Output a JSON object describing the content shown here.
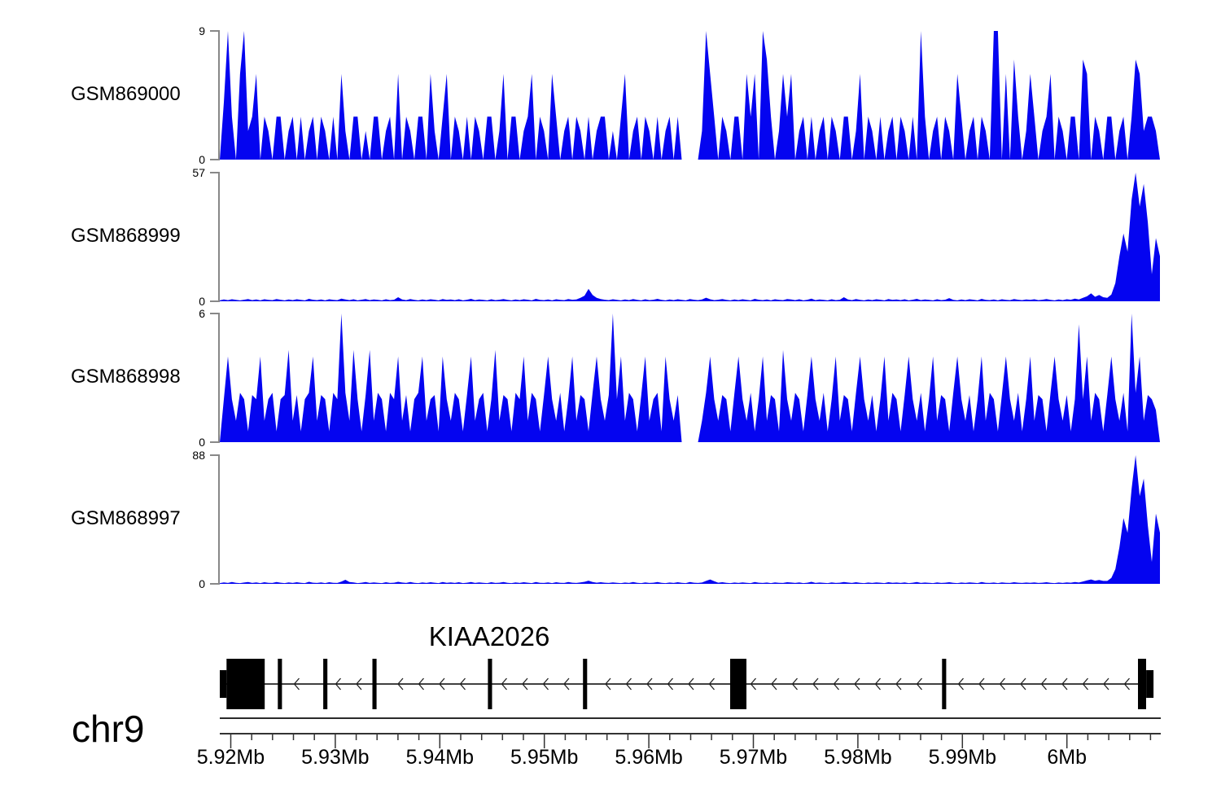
{
  "figure": {
    "chrom_label": "chr9"
  },
  "colors": {
    "signal": "#0404f0",
    "axis": "#888888",
    "ruler": "#333333",
    "gene": "#000000"
  },
  "axis": {
    "start_mb": 5.91895,
    "end_mb": 6.0089,
    "unit": "Mb"
  },
  "ruler": {
    "start_mb": 5.92,
    "end_mb": 6.008,
    "minor_step_mb": 0.002,
    "major_step_mb": 0.01,
    "major_ticks": [
      {
        "mb": 5.92,
        "label": "5.92Mb"
      },
      {
        "mb": 5.93,
        "label": "5.93Mb"
      },
      {
        "mb": 5.94,
        "label": "5.94Mb"
      },
      {
        "mb": 5.95,
        "label": "5.95Mb"
      },
      {
        "mb": 5.96,
        "label": "5.96Mb"
      },
      {
        "mb": 5.97,
        "label": "5.97Mb"
      },
      {
        "mb": 5.98,
        "label": "5.98Mb"
      },
      {
        "mb": 5.99,
        "label": "5.99Mb"
      },
      {
        "mb": 6.0,
        "label": "6Mb"
      }
    ]
  },
  "gene": {
    "name": "KIAA2026",
    "strand": "-",
    "line_start_mb": 5.91895,
    "line_end_mb": 6.00683,
    "exons": [
      {
        "start_mb": 5.91895,
        "end_mb": 5.9196,
        "type": "utr"
      },
      {
        "start_mb": 5.9196,
        "end_mb": 5.92325,
        "type": "cds"
      },
      {
        "start_mb": 5.9245,
        "end_mb": 5.9249,
        "type": "exon"
      },
      {
        "start_mb": 5.92885,
        "end_mb": 5.92925,
        "type": "exon"
      },
      {
        "start_mb": 5.93355,
        "end_mb": 5.93395,
        "type": "exon"
      },
      {
        "start_mb": 5.9446,
        "end_mb": 5.945,
        "type": "exon"
      },
      {
        "start_mb": 5.9537,
        "end_mb": 5.9541,
        "type": "exon"
      },
      {
        "start_mb": 5.96778,
        "end_mb": 5.96934,
        "type": "cds"
      },
      {
        "start_mb": 5.98805,
        "end_mb": 5.98845,
        "type": "exon"
      },
      {
        "start_mb": 6.0068,
        "end_mb": 6.00758,
        "type": "cds"
      },
      {
        "start_mb": 6.00758,
        "end_mb": 6.00828,
        "type": "utr"
      }
    ]
  },
  "chart_data": [
    {
      "type": "area",
      "name": "GSM869000",
      "ylim": [
        0,
        9
      ],
      "x_range_mb": [
        5.919,
        6.009
      ],
      "values": [
        0,
        4,
        9,
        3,
        0,
        6,
        9,
        2,
        3,
        6,
        0,
        3,
        2,
        0,
        3,
        3,
        0,
        2,
        3,
        0,
        3,
        0,
        2,
        3,
        0,
        3,
        2,
        0,
        3,
        0,
        6,
        2,
        0,
        3,
        3,
        0,
        2,
        0,
        3,
        3,
        0,
        2,
        3,
        0,
        6,
        0,
        3,
        2,
        0,
        3,
        3,
        0,
        6,
        2,
        0,
        3,
        6,
        0,
        3,
        2,
        0,
        3,
        0,
        3,
        2,
        0,
        3,
        3,
        0,
        2,
        6,
        0,
        3,
        3,
        0,
        2,
        3,
        6,
        0,
        3,
        2,
        0,
        6,
        3,
        0,
        2,
        3,
        0,
        3,
        2,
        0,
        3,
        0,
        2,
        3,
        3,
        0,
        2,
        0,
        3,
        6,
        0,
        2,
        3,
        0,
        3,
        2,
        0,
        3,
        0,
        2,
        3,
        0,
        3,
        0,
        0,
        0,
        0,
        0,
        2,
        9,
        6,
        3,
        0,
        3,
        2,
        0,
        3,
        3,
        0,
        6,
        3,
        6,
        0,
        9,
        7,
        3,
        0,
        2,
        6,
        3,
        6,
        0,
        2,
        3,
        0,
        3,
        0,
        2,
        3,
        0,
        3,
        2,
        0,
        3,
        3,
        0,
        2,
        6,
        0,
        3,
        2,
        0,
        3,
        0,
        2,
        3,
        0,
        3,
        2,
        0,
        3,
        0,
        9,
        3,
        0,
        2,
        3,
        0,
        3,
        2,
        0,
        6,
        3,
        0,
        2,
        3,
        0,
        3,
        2,
        0,
        9,
        9,
        0,
        6,
        0,
        7,
        3,
        0,
        2,
        6,
        3,
        0,
        2,
        3,
        6,
        0,
        3,
        2,
        0,
        3,
        3,
        0,
        7,
        6,
        0,
        3,
        2,
        0,
        3,
        3,
        0,
        2,
        3,
        0,
        3,
        7,
        6,
        2,
        3,
        3,
        2,
        0
      ]
    },
    {
      "type": "area",
      "name": "GSM868999",
      "ylim": [
        0,
        57
      ],
      "x_range_mb": [
        5.919,
        6.009
      ],
      "values": [
        0.4,
        0.8,
        0.5,
        0.9,
        0.6,
        0.4,
        0.7,
        1.0,
        0.5,
        0.8,
        0.4,
        0.9,
        0.6,
        0.5,
        1.0,
        0.7,
        0.4,
        0.8,
        0.5,
        0.9,
        0.6,
        0.4,
        1.1,
        0.7,
        0.5,
        0.8,
        0.4,
        0.9,
        0.6,
        0.5,
        1.2,
        0.8,
        0.5,
        0.9,
        0.4,
        0.7,
        1.0,
        0.5,
        0.8,
        0.6,
        0.4,
        0.9,
        0.5,
        0.7,
        1.8,
        0.8,
        0.5,
        1.0,
        0.6,
        0.4,
        0.8,
        0.5,
        0.9,
        0.7,
        0.4,
        1.0,
        0.6,
        0.8,
        0.5,
        0.9,
        0.4,
        0.7,
        1.1,
        0.5,
        0.8,
        0.6,
        0.4,
        0.9,
        0.5,
        0.7,
        1.0,
        0.6,
        0.4,
        0.8,
        0.5,
        0.9,
        0.7,
        0.4,
        1.1,
        0.6,
        0.5,
        0.8,
        0.4,
        0.9,
        0.6,
        0.5,
        1.0,
        0.7,
        0.8,
        1.5,
        2.5,
        5.5,
        2.8,
        1.5,
        1.0,
        0.7,
        0.5,
        0.9,
        0.6,
        0.4,
        0.8,
        0.5,
        1.0,
        0.6,
        0.4,
        0.9,
        0.5,
        0.7,
        1.1,
        0.6,
        0.4,
        0.8,
        0.5,
        0.9,
        0.6,
        0.4,
        1.0,
        0.7,
        0.5,
        0.8,
        1.6,
        0.9,
        0.5,
        0.7,
        1.0,
        0.6,
        0.4,
        0.8,
        0.5,
        0.9,
        0.6,
        0.4,
        1.1,
        0.7,
        0.5,
        0.8,
        0.4,
        0.9,
        0.6,
        0.5,
        1.0,
        0.8,
        0.5,
        0.9,
        0.4,
        0.7,
        1.2,
        0.5,
        0.8,
        0.6,
        0.4,
        0.9,
        0.5,
        0.7,
        1.8,
        0.8,
        0.5,
        1.0,
        0.6,
        0.4,
        0.8,
        0.5,
        0.9,
        0.7,
        0.4,
        1.0,
        0.6,
        0.8,
        0.5,
        0.9,
        0.4,
        0.7,
        1.1,
        0.5,
        0.8,
        0.6,
        0.4,
        0.9,
        0.5,
        0.7,
        1.4,
        0.6,
        0.4,
        0.8,
        0.5,
        0.9,
        0.7,
        0.4,
        1.1,
        0.6,
        0.5,
        0.8,
        0.4,
        0.9,
        0.6,
        0.5,
        1.0,
        0.7,
        0.5,
        0.8,
        0.6,
        0.9,
        0.5,
        0.7,
        1.0,
        0.6,
        0.4,
        0.8,
        0.5,
        0.9,
        0.7,
        1.2,
        0.8,
        1.5,
        2.2,
        3.5,
        2.0,
        2.8,
        1.8,
        1.5,
        3,
        8,
        20,
        30,
        22,
        45,
        57,
        42,
        52,
        35,
        12,
        28,
        20
      ]
    },
    {
      "type": "area",
      "name": "GSM868998",
      "ylim": [
        0,
        6
      ],
      "x_range_mb": [
        5.919,
        6.009
      ],
      "values": [
        0,
        2,
        4,
        2,
        1,
        2.3,
        2,
        0.5,
        2.2,
        2,
        4,
        1,
        2,
        2.3,
        0.5,
        2,
        2.2,
        4.3,
        1,
        2.2,
        0.5,
        2,
        2.3,
        4,
        1,
        2.2,
        2,
        0.5,
        2.3,
        2,
        6,
        2.3,
        1,
        4.3,
        2,
        0.5,
        2.2,
        4.3,
        1,
        2.3,
        2,
        0.5,
        2.3,
        2,
        4,
        1,
        2.2,
        0.5,
        2,
        2.3,
        4,
        1,
        2,
        2.2,
        0.5,
        4,
        2,
        1,
        2.3,
        2,
        0.5,
        2.2,
        4,
        1,
        2,
        2.3,
        0.5,
        2,
        4.3,
        1,
        2.2,
        2,
        0.5,
        2.3,
        2,
        4,
        1,
        2.3,
        2,
        0.5,
        2.2,
        4,
        2,
        1,
        2.3,
        0.5,
        2,
        4,
        1,
        2.2,
        2,
        0.5,
        2.3,
        4,
        2,
        1,
        2.2,
        6,
        2,
        4,
        1,
        2.3,
        2,
        0.5,
        2.2,
        4,
        1,
        2,
        2.3,
        0.5,
        4,
        2,
        1,
        2.2,
        0,
        0,
        0,
        0,
        0,
        1,
        2.3,
        4,
        2,
        1,
        2.2,
        2,
        0.5,
        2.3,
        4,
        2,
        1,
        2.3,
        0.5,
        2,
        4,
        1,
        2.2,
        2,
        0.5,
        4.3,
        2,
        1,
        2.3,
        2,
        0.5,
        2.2,
        4,
        2,
        1,
        2.3,
        0.5,
        2,
        4,
        1,
        2.2,
        2,
        0.5,
        2.3,
        4,
        2,
        1,
        2.2,
        0.5,
        2,
        4,
        1,
        2.3,
        2,
        0.5,
        2.2,
        4,
        2,
        1,
        2.3,
        0.5,
        2,
        4,
        1,
        2.2,
        2,
        0.5,
        2.3,
        4,
        2,
        1,
        2.2,
        0.5,
        2,
        4,
        1,
        2.3,
        2,
        0.5,
        2.2,
        4,
        2,
        1,
        2.3,
        0.5,
        2,
        4,
        1,
        2.2,
        2,
        0.5,
        2.3,
        4,
        2,
        1,
        2.2,
        0.5,
        2,
        5.5,
        2,
        4,
        1,
        2.3,
        2,
        0.5,
        2.2,
        4,
        2,
        1,
        2.3,
        0.5,
        6,
        2.3,
        4,
        1,
        2.2,
        2,
        1.5,
        0
      ]
    },
    {
      "type": "area",
      "name": "GSM868997",
      "ylim": [
        0,
        88
      ],
      "x_range_mb": [
        5.919,
        6.009
      ],
      "values": [
        0.5,
        1.0,
        0.6,
        1.2,
        0.7,
        0.5,
        0.9,
        1.3,
        0.6,
        1.0,
        0.5,
        1.1,
        0.7,
        0.6,
        1.3,
        0.8,
        0.5,
        1.0,
        0.6,
        1.1,
        0.7,
        0.5,
        1.4,
        0.8,
        0.6,
        1.0,
        0.5,
        1.1,
        0.7,
        0.6,
        1.5,
        2.8,
        1.2,
        1.0,
        0.5,
        0.8,
        1.2,
        0.6,
        1.0,
        0.7,
        0.5,
        1.1,
        0.6,
        0.8,
        1.4,
        0.9,
        0.6,
        1.2,
        0.7,
        0.5,
        1.0,
        0.6,
        1.1,
        0.8,
        0.5,
        1.2,
        0.7,
        1.0,
        0.6,
        1.1,
        0.5,
        0.8,
        1.3,
        0.6,
        1.0,
        0.7,
        0.5,
        1.1,
        0.6,
        0.8,
        1.2,
        0.7,
        0.5,
        1.0,
        0.6,
        1.1,
        0.8,
        0.5,
        1.3,
        0.7,
        0.6,
        1.0,
        0.5,
        1.1,
        0.7,
        0.6,
        1.2,
        0.8,
        0.6,
        1.0,
        1.4,
        2.2,
        1.2,
        0.8,
        1.1,
        0.8,
        0.6,
        1.0,
        0.7,
        0.5,
        0.9,
        0.6,
        1.2,
        0.7,
        0.5,
        1.0,
        0.6,
        0.8,
        1.3,
        0.7,
        0.5,
        0.9,
        0.6,
        1.1,
        0.7,
        0.5,
        1.2,
        0.8,
        0.6,
        0.9,
        2.0,
        3.0,
        1.8,
        0.8,
        1.1,
        0.7,
        0.5,
        0.9,
        0.6,
        1.0,
        0.7,
        0.5,
        1.3,
        0.8,
        0.6,
        0.9,
        0.5,
        1.0,
        0.7,
        0.6,
        1.1,
        0.9,
        0.6,
        1.0,
        0.5,
        0.8,
        1.4,
        0.6,
        0.9,
        0.7,
        0.5,
        1.0,
        0.6,
        0.8,
        1.2,
        0.9,
        0.6,
        1.1,
        0.7,
        0.5,
        0.9,
        0.6,
        1.0,
        0.8,
        0.5,
        1.1,
        0.7,
        0.9,
        0.6,
        1.0,
        0.5,
        0.8,
        1.2,
        0.6,
        0.9,
        0.7,
        0.5,
        1.0,
        0.6,
        0.8,
        1.1,
        0.7,
        0.5,
        0.9,
        0.6,
        1.0,
        0.8,
        0.5,
        1.2,
        0.7,
        0.6,
        0.9,
        0.5,
        1.0,
        0.7,
        0.6,
        1.1,
        0.8,
        0.6,
        0.9,
        0.7,
        1.0,
        0.6,
        0.8,
        1.1,
        0.7,
        0.5,
        0.9,
        0.6,
        1.0,
        0.8,
        1.3,
        0.9,
        1.6,
        2.4,
        3.0,
        2.2,
        2.6,
        2.0,
        2.0,
        4,
        10,
        25,
        45,
        35,
        65,
        88,
        60,
        72,
        40,
        15,
        48,
        35
      ]
    }
  ]
}
